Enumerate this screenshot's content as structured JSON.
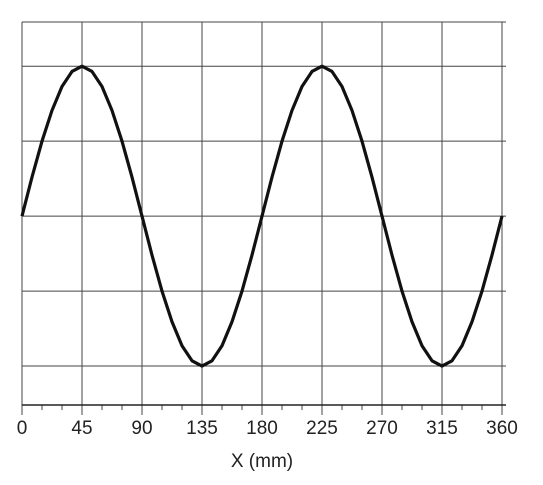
{
  "chart_data": {
    "type": "line",
    "xlabel": "X (mm)",
    "xlim": [
      0,
      360
    ],
    "xticks": [
      0,
      45,
      90,
      135,
      180,
      225,
      270,
      315,
      360
    ],
    "xminor_ticks": [
      0,
      15,
      30,
      45,
      60,
      75,
      90,
      105,
      120,
      135,
      150,
      165,
      180,
      195,
      210,
      225,
      240,
      255,
      270,
      285,
      300,
      315,
      330,
      345,
      360
    ],
    "ylim": [
      -2.52,
      2.59
    ],
    "ygrid_lines": [
      -2,
      -1,
      0,
      1,
      2
    ],
    "grid": true,
    "color": "#111111",
    "x": [
      0,
      7.5,
      15,
      22.5,
      30,
      37.5,
      45,
      52.5,
      60,
      67.5,
      75,
      82.5,
      90,
      97.5,
      105,
      112.5,
      120,
      127.5,
      135,
      142.5,
      150,
      157.5,
      165,
      172.5,
      180,
      187.5,
      195,
      202.5,
      210,
      217.5,
      225,
      232.5,
      240,
      247.5,
      255,
      262.5,
      270,
      277.5,
      285,
      292.5,
      300,
      307.5,
      315,
      322.5,
      330,
      337.5,
      345,
      352.5,
      360
    ],
    "values": [
      0,
      0.52,
      1,
      1.41,
      1.73,
      1.93,
      2,
      1.93,
      1.73,
      1.41,
      1,
      0.52,
      0,
      -0.52,
      -1,
      -1.41,
      -1.73,
      -1.93,
      -2,
      -1.93,
      -1.73,
      -1.41,
      -1,
      -0.52,
      0,
      0.52,
      1,
      1.41,
      1.73,
      1.93,
      2,
      1.93,
      1.73,
      1.41,
      1,
      0.52,
      0,
      -0.52,
      -1,
      -1.41,
      -1.73,
      -1.93,
      -2,
      -1.93,
      -1.73,
      -1.41,
      -1,
      -0.52,
      0
    ]
  }
}
